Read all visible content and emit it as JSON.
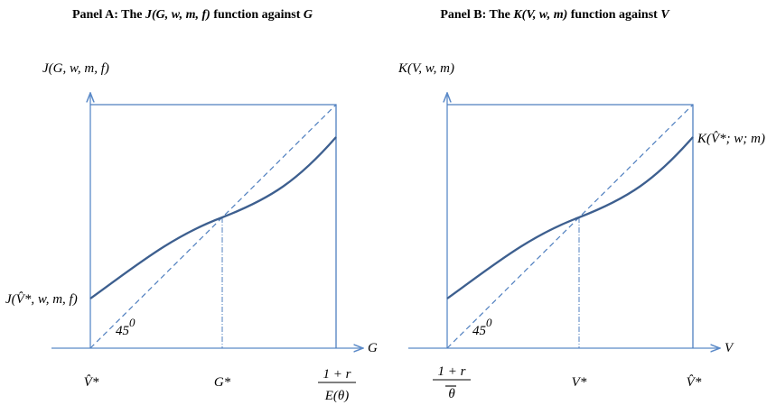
{
  "panel_a": {
    "title_prefix": "Panel A: The ",
    "title_func": "J(G, w, m, f)",
    "title_suffix": " function against ",
    "title_var": "G",
    "y_axis_label": "J(G, w, m, f)",
    "x_axis_label": "G",
    "intercept_label": "J(V̂*, w, m, f)",
    "angle_label": "45",
    "angle_sup": "0",
    "tick_left": "V̂*",
    "tick_mid": "G*",
    "tick_right_num": "1 + r",
    "tick_right_den": "E(θ)"
  },
  "panel_b": {
    "title_prefix": "Panel B: The ",
    "title_func": "K(V, w, m)",
    "title_suffix": " function against ",
    "title_var": "V",
    "y_axis_label": "K(V, w, m)",
    "x_axis_label": "V",
    "curve_label": "K(V̂*; w; m)",
    "angle_label": "45",
    "angle_sup": "0",
    "tick_left_num": "1 + r",
    "tick_left_den": "θ",
    "tick_mid": "V*",
    "tick_right": "V̂*"
  },
  "colors": {
    "axis": "#5b8ac8",
    "curve": "#3d5f8f"
  }
}
